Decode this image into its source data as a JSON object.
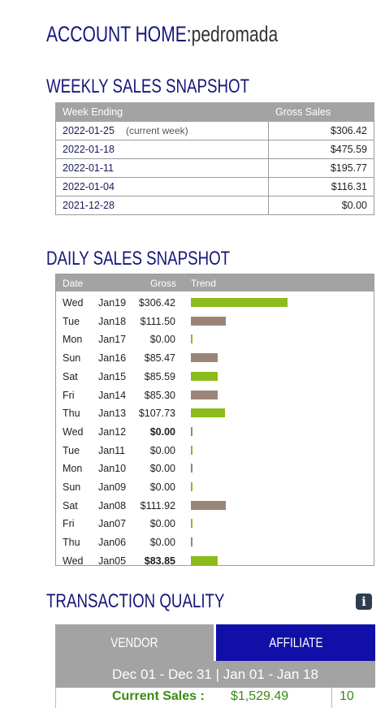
{
  "account": {
    "label": "ACCOUNT HOME:",
    "username": "pedromada"
  },
  "weekly": {
    "title": "WEEKLY SALES SNAPSHOT",
    "headers": {
      "week": "Week Ending",
      "gross": "Gross Sales"
    },
    "rows": [
      {
        "week": "2022-01-25",
        "note": "(current week)",
        "gross": "$306.42"
      },
      {
        "week": "2022-01-18",
        "note": "",
        "gross": "$475.59"
      },
      {
        "week": "2022-01-11",
        "note": "",
        "gross": "$195.77"
      },
      {
        "week": "2022-01-04",
        "note": "",
        "gross": "$116.31"
      },
      {
        "week": "2021-12-28",
        "note": "",
        "gross": "$0.00"
      }
    ]
  },
  "daily": {
    "title": "DAILY SALES SNAPSHOT",
    "headers": {
      "date": "Date",
      "gross": "Gross",
      "trend": "Trend"
    },
    "colors": {
      "up": "#8cbb1c",
      "down": "#9a8578"
    },
    "rows": [
      {
        "dow": "Wed",
        "date": "Jan19",
        "gross": "$306.42",
        "amount": 306.42,
        "trend": "up",
        "bold": false
      },
      {
        "dow": "Tue",
        "date": "Jan18",
        "gross": "$111.50",
        "amount": 111.5,
        "trend": "down",
        "bold": false
      },
      {
        "dow": "Mon",
        "date": "Jan17",
        "gross": "$0.00",
        "amount": 0,
        "trend": "up",
        "bold": false
      },
      {
        "dow": "Sun",
        "date": "Jan16",
        "gross": "$85.47",
        "amount": 85.47,
        "trend": "down",
        "bold": false
      },
      {
        "dow": "Sat",
        "date": "Jan15",
        "gross": "$85.59",
        "amount": 85.59,
        "trend": "up",
        "bold": false
      },
      {
        "dow": "Fri",
        "date": "Jan14",
        "gross": "$85.30",
        "amount": 85.3,
        "trend": "down",
        "bold": false
      },
      {
        "dow": "Thu",
        "date": "Jan13",
        "gross": "$107.73",
        "amount": 107.73,
        "trend": "up",
        "bold": false
      },
      {
        "dow": "Wed",
        "date": "Jan12",
        "gross": "$0.00",
        "amount": 0,
        "trend": "down",
        "bold": true
      },
      {
        "dow": "Tue",
        "date": "Jan11",
        "gross": "$0.00",
        "amount": 0,
        "trend": "up",
        "bold": false
      },
      {
        "dow": "Mon",
        "date": "Jan10",
        "gross": "$0.00",
        "amount": 0,
        "trend": "down",
        "bold": false
      },
      {
        "dow": "Sun",
        "date": "Jan09",
        "gross": "$0.00",
        "amount": 0,
        "trend": "up",
        "bold": false
      },
      {
        "dow": "Sat",
        "date": "Jan08",
        "gross": "$111.92",
        "amount": 111.92,
        "trend": "down",
        "bold": false
      },
      {
        "dow": "Fri",
        "date": "Jan07",
        "gross": "$0.00",
        "amount": 0,
        "trend": "up",
        "bold": false
      },
      {
        "dow": "Thu",
        "date": "Jan06",
        "gross": "$0.00",
        "amount": 0,
        "trend": "down",
        "bold": false
      },
      {
        "dow": "Wed",
        "date": "Jan05",
        "gross": "$83.85",
        "amount": 83.85,
        "trend": "up",
        "bold": true
      }
    ]
  },
  "transaction_quality": {
    "title": "TRANSACTION QUALITY",
    "info_icon": "info-icon",
    "tabs": {
      "vendor": "VENDOR",
      "affiliate": "AFFILIATE"
    },
    "active_tab": "affiliate",
    "range": "Dec 01 - Dec 31 | Jan 01 - Jan 18",
    "current_sales_label": "Current Sales :",
    "current_sales_value": "$1,529.49",
    "current_sales_count": "10"
  }
}
